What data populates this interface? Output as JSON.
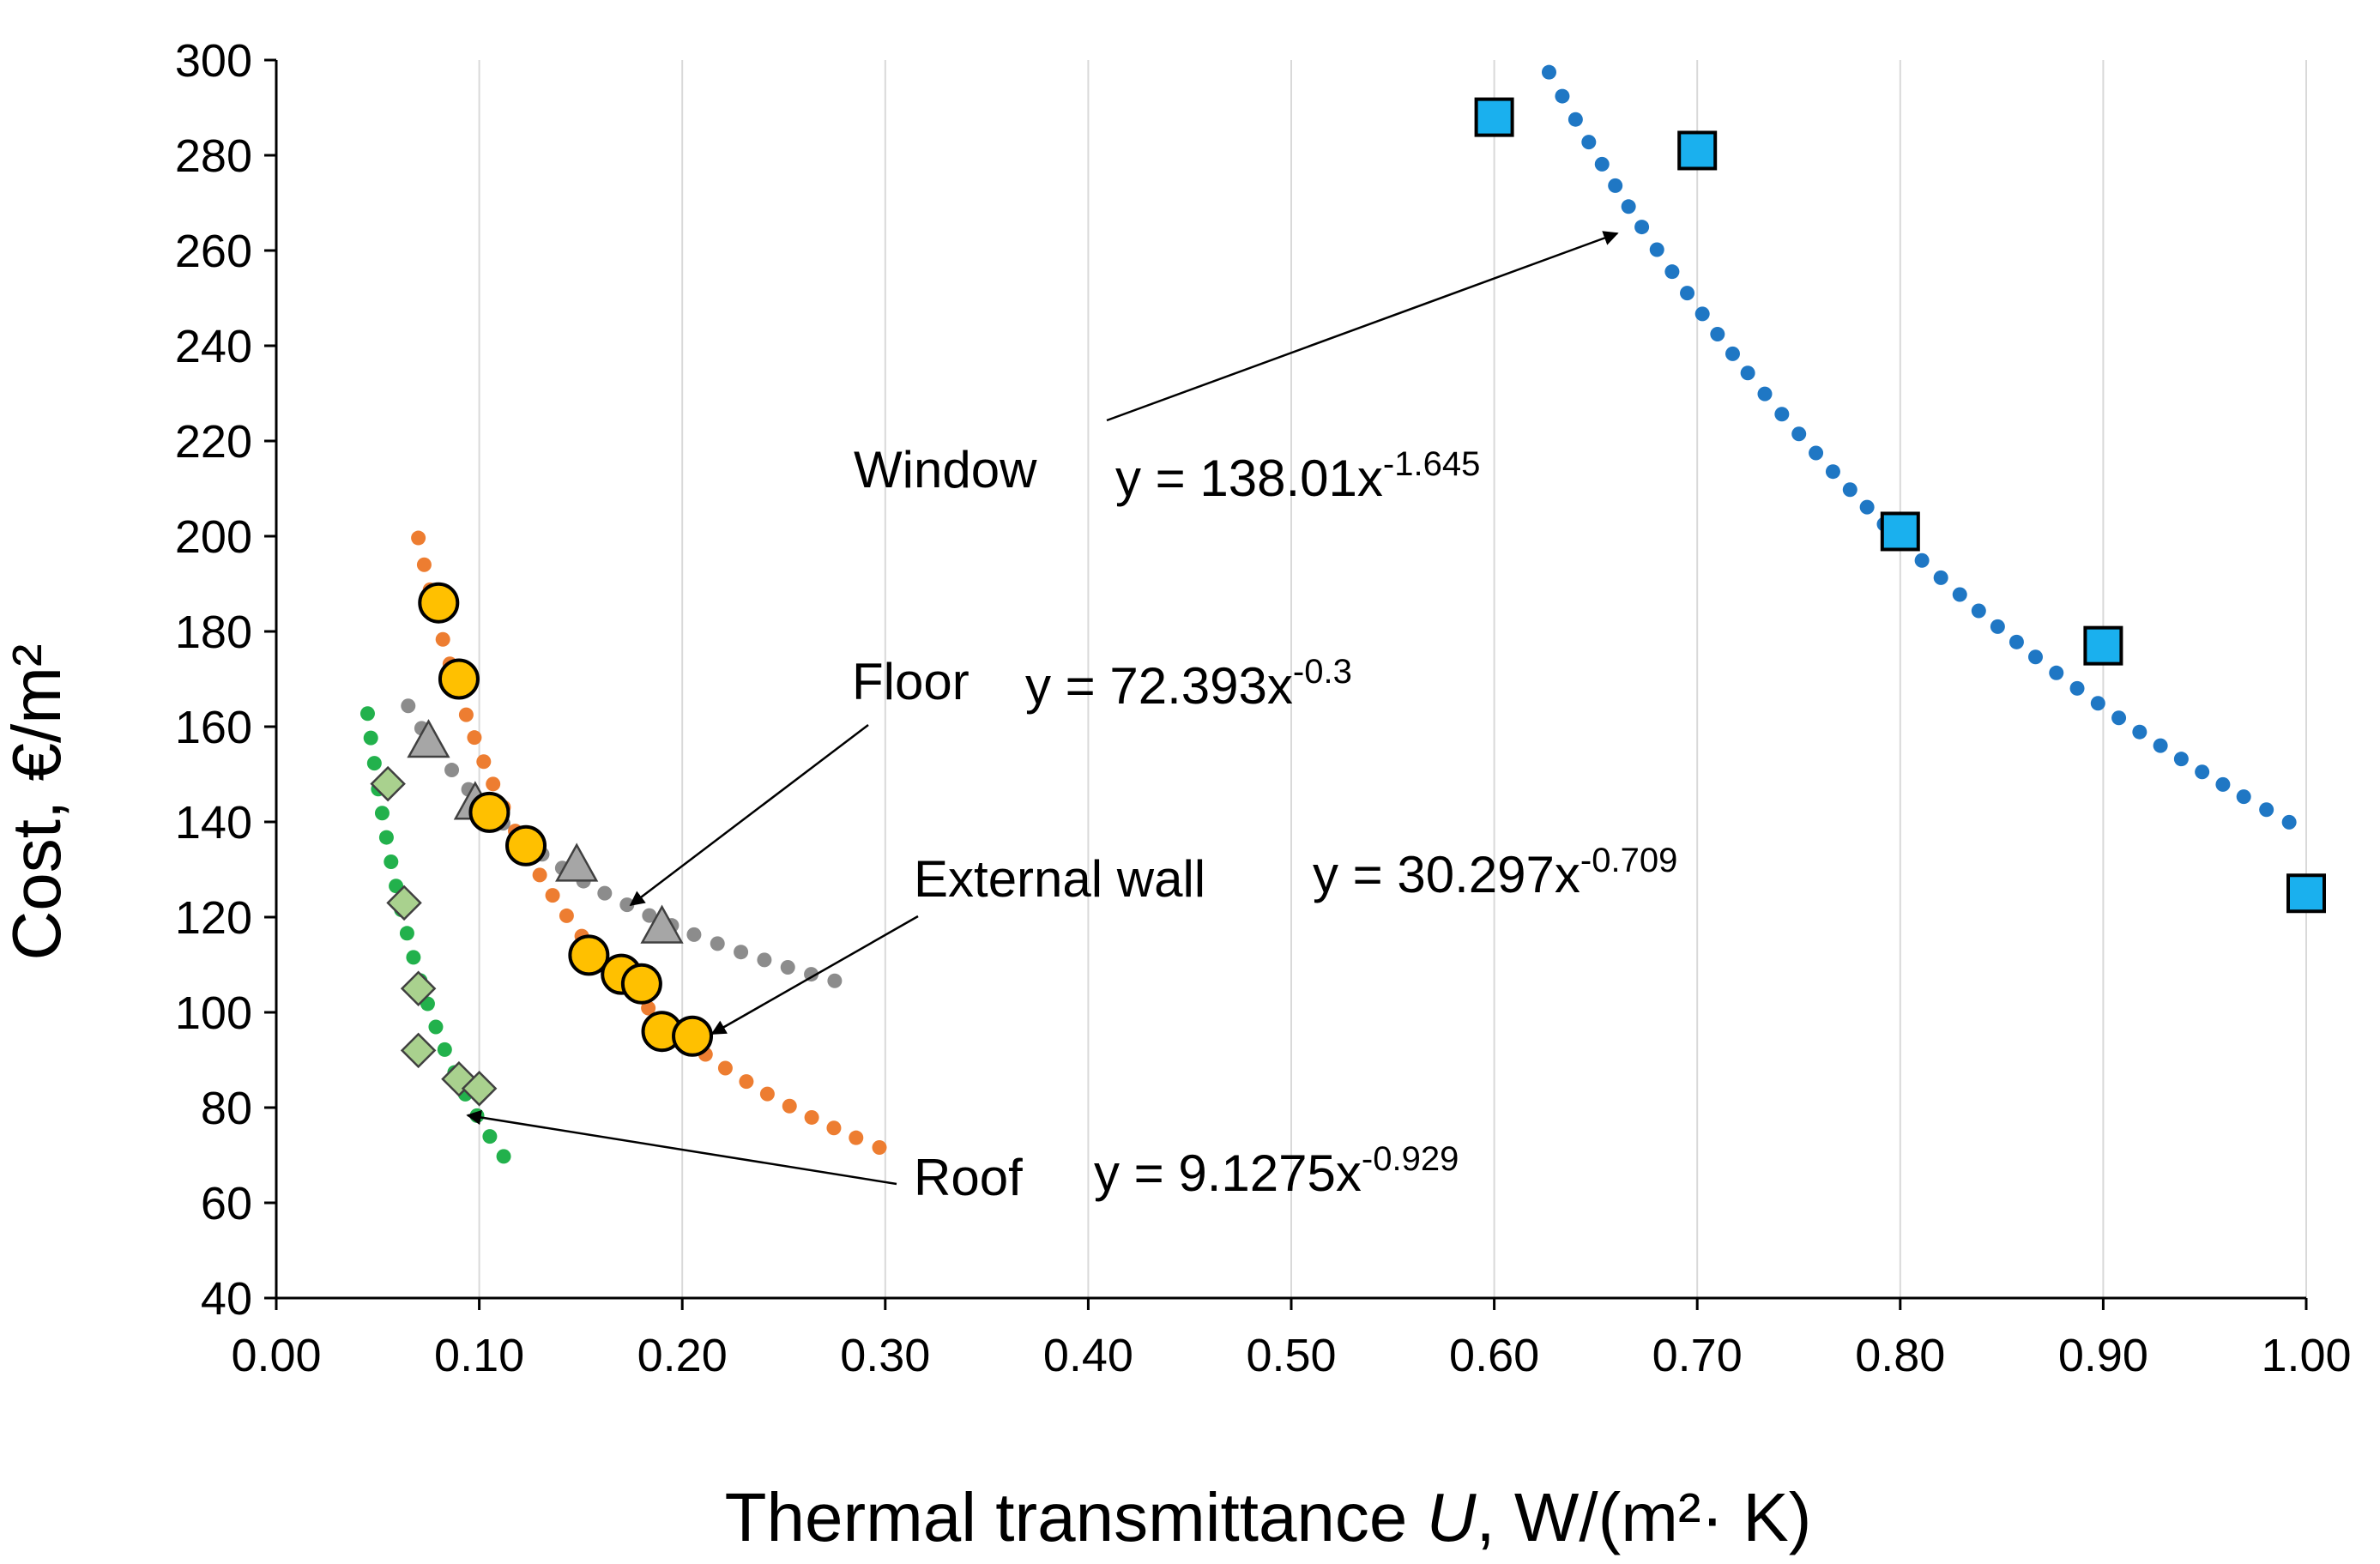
{
  "chart_data": {
    "type": "scatter",
    "title": "",
    "xlabel": {
      "prefix": "Thermal transmittance ",
      "var": "U",
      "suffix": ", W/(m²· K)"
    },
    "ylabel": "Cost, €/m²",
    "xlim": [
      0,
      1.0
    ],
    "ylim": [
      40,
      300
    ],
    "x_ticks": [
      "0.00",
      "0.10",
      "0.20",
      "0.30",
      "0.40",
      "0.50",
      "0.60",
      "0.70",
      "0.80",
      "0.90",
      "1.00"
    ],
    "y_ticks": [
      "40",
      "60",
      "80",
      "100",
      "120",
      "140",
      "160",
      "180",
      "200",
      "220",
      "240",
      "260",
      "280",
      "300"
    ],
    "grid": {
      "vertical": true,
      "horizontal": false
    },
    "series": [
      {
        "name": "Window",
        "marker": "square",
        "color": "#1ab0ee",
        "trend_color": "#1f77c4",
        "x": [
          0.6,
          0.7,
          0.8,
          0.9,
          1.0
        ],
        "y": [
          288,
          281,
          201,
          177,
          125
        ],
        "equation_text": "y = 138.01x",
        "exponent_text": "-1.645",
        "trend": {
          "a": 138.01,
          "b": -1.645,
          "x_from": 0.627,
          "x_to": 1.0
        }
      },
      {
        "name": "Floor",
        "marker": "triangle",
        "color": "#a6a6a6",
        "trend_color": "#8c8c8c",
        "x": [
          0.075,
          0.098,
          0.148,
          0.19
        ],
        "y": [
          157,
          144,
          131,
          118
        ],
        "equation_text": "y = 72.393x",
        "exponent_text": "-0.3",
        "trend": {
          "a": 72.393,
          "b": -0.3,
          "x_from": 0.065,
          "x_to": 0.285
        }
      },
      {
        "name": "External wall",
        "marker": "circle",
        "color": "#ffc000",
        "trend_color": "#ed7d31",
        "x": [
          0.08,
          0.09,
          0.105,
          0.123,
          0.154,
          0.17,
          0.18,
          0.19,
          0.205
        ],
        "y": [
          186,
          170,
          142,
          135,
          112,
          108,
          106,
          96,
          95
        ],
        "equation_text": "y = 30.297x",
        "exponent_text": "-0.709",
        "trend": {
          "a": 30.297,
          "b": -0.709,
          "x_from": 0.07,
          "x_to": 0.3
        }
      },
      {
        "name": "Roof",
        "marker": "diamond",
        "color": "#a9d18e",
        "trend_color": "#22b14c",
        "x": [
          0.055,
          0.063,
          0.07,
          0.07,
          0.09,
          0.1
        ],
        "y": [
          148,
          123,
          105,
          92,
          86,
          84
        ],
        "equation_text": "y = 9.1275x",
        "exponent_text": "-0.929",
        "trend": {
          "a": 9.1275,
          "b": -0.929,
          "x_from": 0.045,
          "x_to": 0.115
        }
      }
    ]
  }
}
